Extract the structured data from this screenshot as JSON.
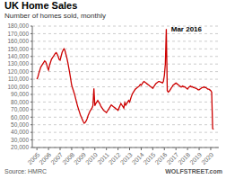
{
  "chart_data": {
    "type": "line",
    "title": "UK Home Sales",
    "subtitle": "Number of homes sold, monthly",
    "source_left": "Source: HMRC",
    "source_right": "WOLFSTREET.com",
    "annotations": [
      {
        "text": "Mar 2016",
        "x": 2016.5,
        "y": 176000
      }
    ],
    "xlim": [
      2004.6,
      2020.7
    ],
    "xticks": [
      2005,
      2006,
      2007,
      2008,
      2009,
      2010,
      2011,
      2012,
      2013,
      2014,
      2015,
      2016,
      2017,
      2018,
      2019,
      2020
    ],
    "ylim": [
      20000,
      180000
    ],
    "yticks": [
      {
        "value": 20000,
        "label": "20,000"
      },
      {
        "value": 30000,
        "label": "30,000"
      },
      {
        "value": 40000,
        "label": "40,000"
      },
      {
        "value": 50000,
        "label": "50,000"
      },
      {
        "value": 60000,
        "label": "60,000"
      },
      {
        "value": 70000,
        "label": "70,000"
      },
      {
        "value": 80000,
        "label": "80,000"
      },
      {
        "value": 90000,
        "label": "90,000"
      },
      {
        "value": 100000,
        "label": "100,000"
      },
      {
        "value": 110000,
        "label": "110,000"
      },
      {
        "value": 120000,
        "label": "120,000"
      },
      {
        "value": 130000,
        "label": "130,000"
      },
      {
        "value": 140000,
        "label": "140,000"
      },
      {
        "value": 150000,
        "label": "150,000"
      },
      {
        "value": 160000,
        "label": "160,000"
      },
      {
        "value": 170000,
        "label": "170,000"
      },
      {
        "value": 180000,
        "label": "180,000"
      }
    ],
    "grid": true,
    "color": "#cc0000",
    "x": [
      2005.0,
      2005.083,
      2005.167,
      2005.25,
      2005.333,
      2005.417,
      2005.5,
      2005.583,
      2005.667,
      2005.75,
      2005.833,
      2005.917,
      2006.0,
      2006.083,
      2006.167,
      2006.25,
      2006.333,
      2006.417,
      2006.5,
      2006.583,
      2006.667,
      2006.75,
      2006.833,
      2006.917,
      2007.0,
      2007.083,
      2007.167,
      2007.25,
      2007.333,
      2007.417,
      2007.5,
      2007.583,
      2007.667,
      2007.75,
      2007.833,
      2007.917,
      2008.0,
      2008.083,
      2008.167,
      2008.25,
      2008.333,
      2008.417,
      2008.5,
      2008.583,
      2008.667,
      2008.75,
      2008.833,
      2008.917,
      2009.0,
      2009.083,
      2009.167,
      2009.25,
      2009.333,
      2009.417,
      2009.5,
      2009.583,
      2009.667,
      2009.75,
      2009.833,
      2009.917,
      2010.0,
      2010.083,
      2010.167,
      2010.25,
      2010.333,
      2010.417,
      2010.5,
      2010.583,
      2010.667,
      2010.75,
      2010.833,
      2010.917,
      2011.0,
      2011.083,
      2011.167,
      2011.25,
      2011.333,
      2011.417,
      2011.5,
      2011.583,
      2011.667,
      2011.75,
      2011.833,
      2011.917,
      2012.0,
      2012.083,
      2012.167,
      2012.25,
      2012.333,
      2012.417,
      2012.5,
      2012.583,
      2012.667,
      2012.75,
      2012.833,
      2012.917,
      2013.0,
      2013.083,
      2013.167,
      2013.25,
      2013.333,
      2013.417,
      2013.5,
      2013.583,
      2013.667,
      2013.75,
      2013.833,
      2013.917,
      2014.0,
      2014.083,
      2014.167,
      2014.25,
      2014.333,
      2014.417,
      2014.5,
      2014.583,
      2014.667,
      2014.75,
      2014.833,
      2014.917,
      2015.0,
      2015.083,
      2015.167,
      2015.25,
      2015.333,
      2015.417,
      2015.5,
      2015.583,
      2015.667,
      2015.75,
      2015.833,
      2015.917,
      2016.0,
      2016.083,
      2016.167,
      2016.25,
      2016.333,
      2016.417,
      2016.5,
      2016.583,
      2016.667,
      2016.75,
      2016.833,
      2016.917,
      2017.0,
      2017.083,
      2017.167,
      2017.25,
      2017.333,
      2017.417,
      2017.5,
      2017.583,
      2017.667,
      2017.75,
      2017.833,
      2017.917,
      2018.0,
      2018.083,
      2018.167,
      2018.25,
      2018.333,
      2018.417,
      2018.5,
      2018.583,
      2018.667,
      2018.75,
      2018.833,
      2018.917,
      2019.0,
      2019.083,
      2019.167,
      2019.25,
      2019.333,
      2019.417,
      2019.5,
      2019.583,
      2019.667,
      2019.75,
      2019.833,
      2019.917,
      2020.0,
      2020.083,
      2020.167,
      2020.25
    ],
    "values": [
      110000,
      113000,
      118000,
      122000,
      126000,
      128000,
      130000,
      132000,
      134000,
      133000,
      130000,
      125000,
      122000,
      128000,
      132000,
      136000,
      138000,
      140000,
      142000,
      144000,
      145000,
      143000,
      140000,
      136000,
      135000,
      140000,
      145000,
      148000,
      150000,
      148000,
      143000,
      138000,
      132000,
      125000,
      118000,
      110000,
      102000,
      98000,
      94000,
      90000,
      85000,
      80000,
      75000,
      71000,
      67000,
      63000,
      60000,
      57000,
      54000,
      52000,
      53000,
      55000,
      58000,
      62000,
      65000,
      68000,
      70000,
      72000,
      75000,
      98000,
      75000,
      78000,
      80000,
      82000,
      80000,
      78000,
      75000,
      73000,
      71000,
      69000,
      68000,
      67000,
      66000,
      68000,
      70000,
      72000,
      74000,
      76000,
      75000,
      74000,
      73000,
      72000,
      71000,
      70000,
      69000,
      72000,
      75000,
      78000,
      76000,
      74000,
      72000,
      79000,
      76000,
      78000,
      80000,
      82000,
      80000,
      84000,
      88000,
      91000,
      93000,
      95000,
      97000,
      98000,
      99000,
      100000,
      101000,
      103000,
      102000,
      104000,
      106000,
      107000,
      106000,
      105000,
      104000,
      103000,
      102000,
      101000,
      100000,
      99000,
      98000,
      100000,
      102000,
      104000,
      105000,
      106000,
      107000,
      107000,
      106000,
      106000,
      105000,
      107000,
      115000,
      130000,
      176000,
      95000,
      93000,
      94000,
      96000,
      98000,
      100000,
      102000,
      103000,
      104000,
      105000,
      104000,
      103000,
      102000,
      101000,
      100000,
      100000,
      101000,
      100000,
      100000,
      99000,
      98000,
      97000,
      99000,
      100000,
      101000,
      100000,
      100000,
      99000,
      99000,
      98000,
      98000,
      97000,
      96000,
      96000,
      97000,
      98000,
      99000,
      99000,
      100000,
      99000,
      99000,
      98000,
      97000,
      97000,
      96000,
      95000,
      93000,
      45000,
      44000
    ]
  }
}
